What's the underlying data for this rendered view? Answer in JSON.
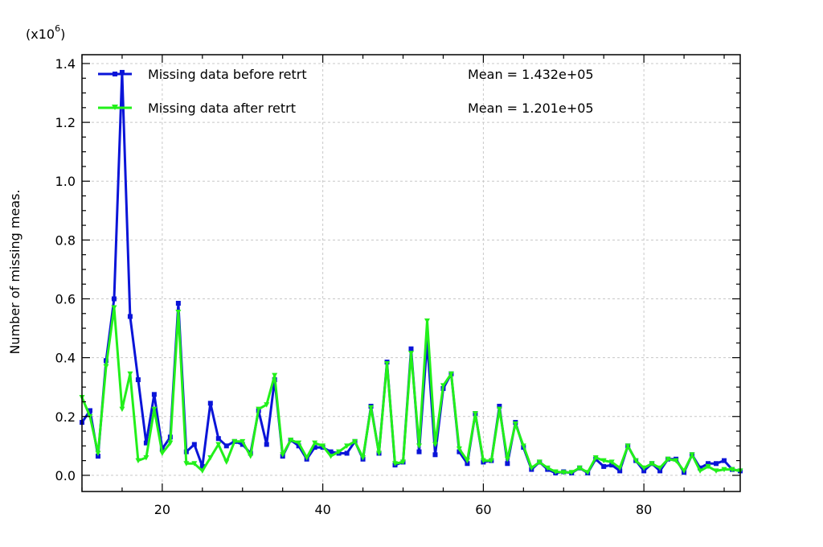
{
  "chart_data": {
    "type": "line",
    "title": "",
    "xlabel": "",
    "ylabel": "Number of missing meas.",
    "y_multiplier_label": "(x10",
    "y_multiplier_exp": "6",
    "y_multiplier_close": ")",
    "xlim": [
      10,
      92
    ],
    "ylim": [
      -0.055,
      1.43
    ],
    "xticks": [
      20,
      40,
      60,
      80
    ],
    "xtick_labels": [
      "20",
      "40",
      "60",
      "80"
    ],
    "yticks": [
      0.0,
      0.2,
      0.4,
      0.6,
      0.8,
      1.0,
      1.2,
      1.4
    ],
    "ytick_labels": [
      "0.0",
      "0.2",
      "0.4",
      "0.6",
      "0.8",
      "1.0",
      "1.2",
      "1.4"
    ],
    "grid": true,
    "legend_position": "top-left",
    "x": [
      10,
      11,
      12,
      13,
      14,
      15,
      16,
      17,
      18,
      19,
      20,
      21,
      22,
      23,
      24,
      25,
      26,
      27,
      28,
      29,
      30,
      31,
      32,
      33,
      34,
      35,
      36,
      37,
      38,
      39,
      40,
      41,
      42,
      43,
      44,
      45,
      46,
      47,
      48,
      49,
      50,
      51,
      52,
      53,
      54,
      55,
      56,
      57,
      58,
      59,
      60,
      61,
      62,
      63,
      64,
      65,
      66,
      67,
      68,
      69,
      70,
      71,
      72,
      73,
      74,
      75,
      76,
      77,
      78,
      79,
      80,
      81,
      82,
      83,
      84,
      85,
      86,
      87,
      88,
      89,
      90,
      91,
      92
    ],
    "series": [
      {
        "name": "Missing data before retrt",
        "mean_text": "Mean = 1.432e+05",
        "color": "#0a14d8",
        "marker": "square",
        "values": [
          0.18,
          0.22,
          0.065,
          0.39,
          0.6,
          1.37,
          0.54,
          0.325,
          0.11,
          0.275,
          0.09,
          0.13,
          0.585,
          0.08,
          0.105,
          0.03,
          0.245,
          0.125,
          0.1,
          0.115,
          0.105,
          0.075,
          0.22,
          0.105,
          0.325,
          0.065,
          0.12,
          0.1,
          0.055,
          0.095,
          0.095,
          0.08,
          0.075,
          0.075,
          0.115,
          0.055,
          0.235,
          0.075,
          0.385,
          0.035,
          0.045,
          0.43,
          0.08,
          0.455,
          0.07,
          0.295,
          0.345,
          0.08,
          0.04,
          0.21,
          0.045,
          0.05,
          0.235,
          0.04,
          0.18,
          0.095,
          0.02,
          0.045,
          0.02,
          0.008,
          0.012,
          0.008,
          0.025,
          0.008,
          0.055,
          0.03,
          0.035,
          0.015,
          0.1,
          0.05,
          0.015,
          0.04,
          0.015,
          0.055,
          0.055,
          0.01,
          0.07,
          0.025,
          0.04,
          0.04,
          0.05,
          0.02,
          0.015
        ]
      },
      {
        "name": "Missing data after retrt",
        "mean_text": "Mean = 1.201e+05",
        "color": "#22f01a",
        "marker": "triangle-down",
        "values": [
          0.265,
          0.2,
          0.075,
          0.37,
          0.57,
          0.225,
          0.345,
          0.05,
          0.06,
          0.225,
          0.075,
          0.11,
          0.555,
          0.04,
          0.04,
          0.015,
          0.06,
          0.105,
          0.045,
          0.115,
          0.115,
          0.065,
          0.225,
          0.24,
          0.34,
          0.07,
          0.12,
          0.11,
          0.06,
          0.11,
          0.1,
          0.065,
          0.08,
          0.1,
          0.115,
          0.06,
          0.23,
          0.075,
          0.38,
          0.04,
          0.045,
          0.415,
          0.1,
          0.525,
          0.105,
          0.305,
          0.345,
          0.09,
          0.05,
          0.21,
          0.05,
          0.05,
          0.225,
          0.055,
          0.175,
          0.1,
          0.025,
          0.045,
          0.025,
          0.012,
          0.01,
          0.01,
          0.025,
          0.01,
          0.06,
          0.05,
          0.045,
          0.025,
          0.1,
          0.05,
          0.025,
          0.04,
          0.025,
          0.055,
          0.05,
          0.015,
          0.07,
          0.015,
          0.03,
          0.015,
          0.02,
          0.02,
          0.015
        ]
      }
    ]
  }
}
